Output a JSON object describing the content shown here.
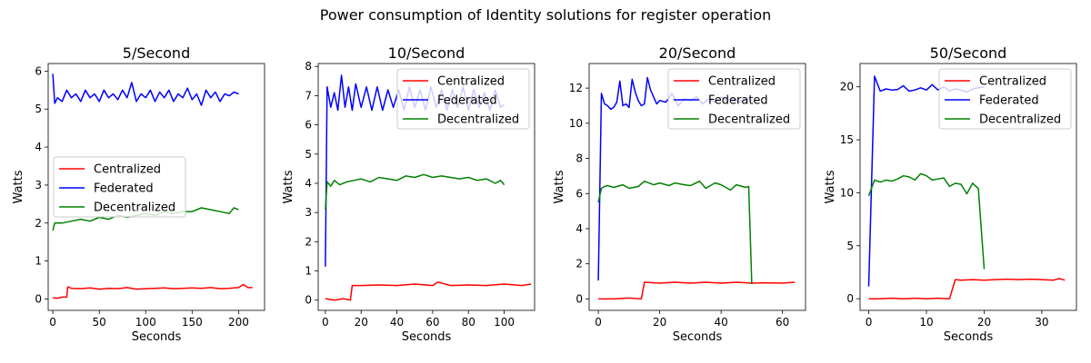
{
  "figure": {
    "title": "Power consumption of Identity solutions for register operation"
  },
  "colors": {
    "Centralized": "#ff0000",
    "Federated": "#0000ff",
    "Decentralized": "#008000"
  },
  "chart_data": [
    {
      "type": "line",
      "title": "5/Second",
      "xlabel": "Seconds",
      "ylabel": "Watts",
      "xlim": [
        -5,
        228
      ],
      "ylim": [
        -0.3,
        6.2
      ],
      "xticks": [
        0,
        50,
        100,
        150,
        200
      ],
      "yticks": [
        0,
        1,
        2,
        3,
        4,
        5,
        6
      ],
      "legend_loc": "center-left",
      "series": [
        {
          "name": "Centralized",
          "x": [
            0,
            5,
            10,
            15,
            16,
            20,
            30,
            40,
            50,
            60,
            70,
            80,
            90,
            100,
            110,
            120,
            130,
            140,
            150,
            160,
            170,
            180,
            190,
            200,
            205,
            210,
            215
          ],
          "y": [
            0.03,
            0.02,
            0.05,
            0.05,
            0.32,
            0.28,
            0.27,
            0.29,
            0.26,
            0.28,
            0.27,
            0.3,
            0.26,
            0.27,
            0.28,
            0.29,
            0.27,
            0.28,
            0.29,
            0.28,
            0.3,
            0.27,
            0.28,
            0.3,
            0.38,
            0.3,
            0.3
          ]
        },
        {
          "name": "Federated",
          "x": [
            0,
            2,
            5,
            10,
            15,
            20,
            25,
            30,
            35,
            40,
            45,
            50,
            55,
            60,
            65,
            70,
            75,
            80,
            85,
            90,
            95,
            100,
            105,
            110,
            115,
            120,
            125,
            130,
            135,
            140,
            145,
            150,
            155,
            160,
            165,
            170,
            175,
            180,
            185,
            190,
            195,
            200
          ],
          "y": [
            5.93,
            5.15,
            5.3,
            5.2,
            5.5,
            5.3,
            5.4,
            5.2,
            5.5,
            5.3,
            5.4,
            5.2,
            5.5,
            5.3,
            5.4,
            5.25,
            5.5,
            5.3,
            5.7,
            5.2,
            5.4,
            5.3,
            5.5,
            5.2,
            5.45,
            5.3,
            5.5,
            5.2,
            5.4,
            5.3,
            5.55,
            5.25,
            5.4,
            5.1,
            5.5,
            5.3,
            5.45,
            5.2,
            5.4,
            5.35,
            5.45,
            5.4
          ]
        },
        {
          "name": "Decentralized",
          "x": [
            0,
            2,
            10,
            20,
            30,
            40,
            50,
            60,
            70,
            80,
            90,
            100,
            110,
            120,
            130,
            140,
            150,
            160,
            170,
            180,
            190,
            195,
            200
          ],
          "y": [
            1.8,
            2.0,
            2.0,
            2.05,
            2.1,
            2.05,
            2.15,
            2.1,
            2.2,
            2.15,
            2.2,
            2.25,
            2.2,
            2.3,
            2.25,
            2.3,
            2.3,
            2.4,
            2.35,
            2.3,
            2.25,
            2.4,
            2.35
          ]
        }
      ]
    },
    {
      "type": "line",
      "title": "10/Second",
      "xlabel": "Seconds",
      "ylabel": "Watts",
      "xlim": [
        -4,
        117
      ],
      "ylim": [
        -0.35,
        8.1
      ],
      "xticks": [
        0,
        20,
        40,
        60,
        80,
        100
      ],
      "yticks": [
        0,
        1,
        2,
        3,
        4,
        5,
        6,
        7,
        8
      ],
      "legend_loc": "upper-right",
      "series": [
        {
          "name": "Centralized",
          "x": [
            0,
            5,
            10,
            14,
            15,
            20,
            30,
            40,
            50,
            60,
            63,
            70,
            80,
            90,
            100,
            110,
            115
          ],
          "y": [
            0.05,
            0.0,
            0.05,
            0.0,
            0.5,
            0.5,
            0.52,
            0.5,
            0.55,
            0.5,
            0.62,
            0.5,
            0.52,
            0.5,
            0.55,
            0.5,
            0.55
          ]
        },
        {
          "name": "Federated",
          "x": [
            0,
            1,
            3,
            5,
            7,
            9,
            11,
            13,
            15,
            17,
            20,
            23,
            26,
            29,
            32,
            35,
            38,
            41,
            44,
            47,
            50,
            53,
            56,
            59,
            62,
            65,
            68,
            71,
            74,
            77,
            80,
            83,
            86,
            89,
            92,
            95,
            98,
            100
          ],
          "y": [
            1.15,
            7.3,
            6.6,
            7.1,
            6.5,
            7.7,
            6.6,
            7.3,
            6.5,
            7.4,
            6.6,
            7.3,
            6.5,
            7.3,
            6.5,
            7.2,
            6.6,
            7.2,
            6.5,
            7.3,
            6.6,
            7.2,
            6.5,
            7.3,
            6.6,
            7.2,
            6.5,
            7.2,
            6.6,
            7.3,
            6.5,
            7.2,
            6.6,
            7.1,
            6.5,
            7.2,
            6.6,
            6.7
          ]
        },
        {
          "name": "Decentralized",
          "x": [
            0,
            1,
            3,
            5,
            8,
            12,
            16,
            20,
            25,
            30,
            35,
            40,
            45,
            50,
            55,
            60,
            65,
            70,
            75,
            80,
            85,
            90,
            95,
            98,
            100
          ],
          "y": [
            3.1,
            4.05,
            3.9,
            4.1,
            3.95,
            4.05,
            4.1,
            4.15,
            4.05,
            4.2,
            4.15,
            4.1,
            4.25,
            4.2,
            4.3,
            4.2,
            4.25,
            4.2,
            4.15,
            4.2,
            4.1,
            4.15,
            4.0,
            4.1,
            3.95
          ]
        }
      ]
    },
    {
      "type": "line",
      "title": "20/Second",
      "xlabel": "Seconds",
      "ylabel": "Watts",
      "xlim": [
        -3,
        67.5
      ],
      "ylim": [
        -0.65,
        13.4
      ],
      "xticks": [
        0,
        20,
        40,
        60
      ],
      "yticks": [
        0,
        2,
        4,
        6,
        8,
        10,
        12
      ],
      "legend_loc": "upper-right",
      "series": [
        {
          "name": "Centralized",
          "x": [
            0,
            5,
            10,
            14,
            15,
            20,
            25,
            30,
            35,
            40,
            45,
            50,
            55,
            60,
            64
          ],
          "y": [
            0.0,
            0.0,
            0.05,
            0.0,
            0.95,
            0.9,
            0.95,
            0.9,
            0.95,
            0.9,
            0.95,
            0.9,
            0.92,
            0.9,
            0.95
          ]
        },
        {
          "name": "Federated",
          "x": [
            0,
            1,
            2,
            3,
            4,
            5,
            6,
            7,
            8,
            9,
            10,
            11,
            12,
            13,
            14,
            15,
            16,
            17,
            18,
            19,
            20,
            22,
            24,
            26,
            28,
            30,
            32,
            34,
            36,
            38,
            40,
            42,
            44,
            46,
            48,
            50
          ],
          "y": [
            1.05,
            11.7,
            11.1,
            11.0,
            10.8,
            10.9,
            11.2,
            12.4,
            11.0,
            11.1,
            10.9,
            12.5,
            11.8,
            11.3,
            11.0,
            11.1,
            12.6,
            11.9,
            11.5,
            11.1,
            11.3,
            11.2,
            11.7,
            11.0,
            11.4,
            11.3,
            11.5,
            11.1,
            11.4,
            11.2,
            11.5,
            11.3,
            11.4,
            11.2,
            11.4,
            11.3
          ]
        },
        {
          "name": "Decentralized",
          "x": [
            0,
            1,
            2,
            3,
            5,
            8,
            10,
            13,
            15,
            18,
            20,
            23,
            25,
            28,
            30,
            33,
            35,
            38,
            40,
            43,
            45,
            48,
            49,
            50
          ],
          "y": [
            5.5,
            6.3,
            6.4,
            6.45,
            6.35,
            6.5,
            6.3,
            6.4,
            6.7,
            6.5,
            6.6,
            6.45,
            6.6,
            6.5,
            6.45,
            6.7,
            6.3,
            6.6,
            6.5,
            6.2,
            6.5,
            6.35,
            6.4,
            0.85
          ]
        }
      ]
    },
    {
      "type": "line",
      "title": "50/Second",
      "xlabel": "Seconds",
      "ylabel": "Watts",
      "xlim": [
        -1.5,
        36
      ],
      "ylim": [
        -1.1,
        22.2
      ],
      "xticks": [
        0,
        10,
        20,
        30
      ],
      "yticks": [
        0,
        5,
        10,
        15,
        20
      ],
      "legend_loc": "upper-right",
      "series": [
        {
          "name": "Centralized",
          "x": [
            0,
            2,
            4,
            6,
            8,
            10,
            12,
            14,
            15,
            16,
            18,
            20,
            22,
            24,
            26,
            28,
            30,
            32,
            33,
            34
          ],
          "y": [
            0.0,
            0.0,
            0.05,
            0.0,
            0.05,
            0.0,
            0.05,
            0.0,
            1.8,
            1.75,
            1.8,
            1.75,
            1.8,
            1.85,
            1.8,
            1.85,
            1.8,
            1.75,
            1.9,
            1.75
          ]
        },
        {
          "name": "Federated",
          "x": [
            0,
            1,
            2,
            3,
            4,
            5,
            6,
            7,
            8,
            9,
            10,
            11,
            12,
            13,
            14,
            15,
            16,
            17,
            18,
            19,
            20
          ],
          "y": [
            1.15,
            21.0,
            19.6,
            19.8,
            19.7,
            19.75,
            20.1,
            19.6,
            19.7,
            19.9,
            19.7,
            20.2,
            19.7,
            20.0,
            19.6,
            19.8,
            19.7,
            19.5,
            19.8,
            19.9,
            20.0
          ]
        },
        {
          "name": "Decentralized",
          "x": [
            0,
            1,
            2,
            3,
            4,
            5,
            6,
            7,
            8,
            9,
            10,
            11,
            12,
            13,
            14,
            15,
            16,
            17,
            18,
            19,
            20
          ],
          "y": [
            9.7,
            11.2,
            11.0,
            11.2,
            11.1,
            11.3,
            11.6,
            11.5,
            11.2,
            11.8,
            11.6,
            11.2,
            11.3,
            11.4,
            10.6,
            10.9,
            10.8,
            9.9,
            10.9,
            10.4,
            2.8
          ]
        }
      ]
    }
  ]
}
